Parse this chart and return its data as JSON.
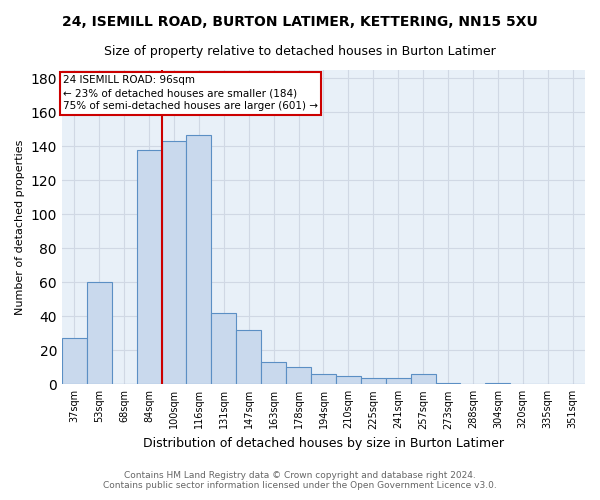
{
  "title1": "24, ISEMILL ROAD, BURTON LATIMER, KETTERING, NN15 5XU",
  "title2": "Size of property relative to detached houses in Burton Latimer",
  "xlabel": "Distribution of detached houses by size in Burton Latimer",
  "ylabel": "Number of detached properties",
  "footnote1": "Contains HM Land Registry data © Crown copyright and database right 2024.",
  "footnote2": "Contains public sector information licensed under the Open Government Licence v3.0.",
  "bar_labels": [
    "37sqm",
    "53sqm",
    "68sqm",
    "84sqm",
    "100sqm",
    "116sqm",
    "131sqm",
    "147sqm",
    "163sqm",
    "178sqm",
    "194sqm",
    "210sqm",
    "225sqm",
    "241sqm",
    "257sqm",
    "273sqm",
    "288sqm",
    "304sqm",
    "320sqm",
    "335sqm",
    "351sqm"
  ],
  "bar_values": [
    27,
    60,
    0,
    138,
    143,
    147,
    42,
    32,
    13,
    10,
    6,
    5,
    4,
    4,
    6,
    1,
    0,
    1,
    0,
    0,
    0
  ],
  "bar_color": "#c9d9ed",
  "bar_edge_color": "#5b8fc4",
  "red_line_color": "#cc0000",
  "ylim": [
    0,
    185
  ],
  "yticks": [
    0,
    20,
    40,
    60,
    80,
    100,
    120,
    140,
    160,
    180
  ],
  "annotation_title": "24 ISEMILL ROAD: 96sqm",
  "annotation_line1": "← 23% of detached houses are smaller (184)",
  "annotation_line2": "75% of semi-detached houses are larger (601) →",
  "annotation_box_color": "#ffffff",
  "annotation_box_edge": "#cc0000",
  "grid_color": "#d0d8e4",
  "background_color": "#ffffff",
  "title1_fontsize": 10,
  "title2_fontsize": 9
}
